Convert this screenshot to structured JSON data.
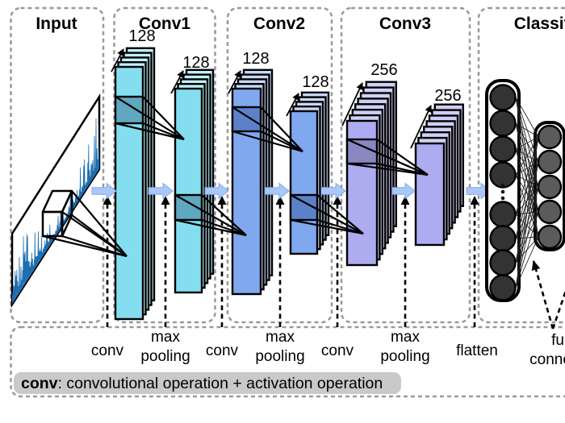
{
  "figure": {
    "type": "cnn-architecture-diagram",
    "sections": [
      {
        "title": "Input"
      },
      {
        "title": "Conv1"
      },
      {
        "title": "Conv2"
      },
      {
        "title": "Conv3"
      },
      {
        "title": "Classification"
      }
    ],
    "feature_maps": [
      {
        "section": "Conv1",
        "stage": "after-conv",
        "count": "128"
      },
      {
        "section": "Conv1",
        "stage": "after-pool",
        "count": "128"
      },
      {
        "section": "Conv2",
        "stage": "after-conv",
        "count": "128"
      },
      {
        "section": "Conv2",
        "stage": "after-pool",
        "count": "128"
      },
      {
        "section": "Conv3",
        "stage": "after-conv",
        "count": "256"
      },
      {
        "section": "Conv3",
        "stage": "after-pool",
        "count": "256"
      }
    ],
    "operations": [
      {
        "lines": [
          "conv"
        ]
      },
      {
        "lines": [
          "max",
          "pooling"
        ]
      },
      {
        "lines": [
          "conv"
        ]
      },
      {
        "lines": [
          "max",
          "pooling"
        ]
      },
      {
        "lines": [
          "conv"
        ]
      },
      {
        "lines": [
          "max",
          "pooling"
        ]
      },
      {
        "lines": [
          "flatten"
        ]
      },
      {
        "lines": [
          "fully",
          "connected"
        ]
      }
    ],
    "legend": {
      "term": "conv",
      "definition": ": convolutional operation + activation operation"
    },
    "colors": {
      "conv1_front": "#85DEF0",
      "conv1_back": "#C2EFF8",
      "conv1_field": "#5FA8BF",
      "conv2_front": "#80A8EE",
      "conv2_back": "#C8D8F7",
      "conv2_field": "#5D81C9",
      "conv3_front": "#ADACF0",
      "conv3_back": "#D0CFF5",
      "conv3_field": "#8987BF",
      "flow_arrow": "#A9C8F7",
      "flow_arrow_edge": "#7FA8EA",
      "signal": "#1E6FB0",
      "neuron_hidden": "#333333",
      "neuron_output": "#5B5B5B",
      "line_black": "#000000",
      "section_border": "#999999",
      "legend_bg": "#C9C9C9"
    }
  }
}
